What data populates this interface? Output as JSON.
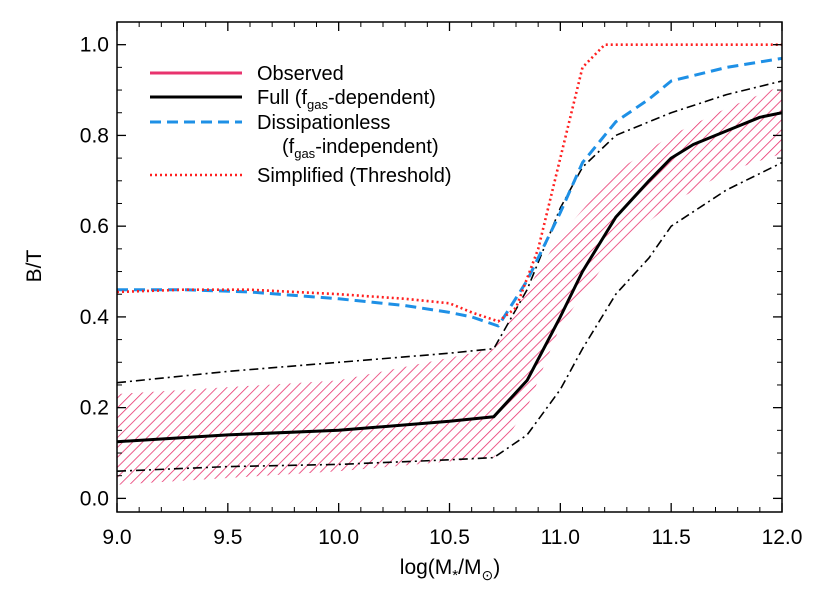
{
  "chart_data": {
    "type": "line",
    "xlabel": "log(M*/M⊙)",
    "ylabel": "B/T",
    "xlim": [
      9.0,
      12.0
    ],
    "ylim": [
      -0.03,
      1.05
    ],
    "xticks": [
      "9.0",
      "9.5",
      "10.0",
      "10.5",
      "11.0",
      "11.5",
      "12.0"
    ],
    "yticks": [
      "0.0",
      "0.2",
      "0.4",
      "0.6",
      "0.8",
      "1.0"
    ],
    "legend_position": "top-left",
    "observed_band": {
      "name": "Observed",
      "color": "#e8336e",
      "x": [
        9.0,
        10.0,
        10.7,
        10.85,
        11.0,
        11.25,
        11.5,
        11.75,
        12.0
      ],
      "lower": [
        0.03,
        0.06,
        0.09,
        0.2,
        0.38,
        0.55,
        0.65,
        0.72,
        0.76
      ],
      "upper": [
        0.23,
        0.26,
        0.33,
        0.46,
        0.58,
        0.72,
        0.8,
        0.86,
        0.91
      ]
    },
    "series": [
      {
        "name": "Full",
        "sub": "gas",
        "suffix": "-dependent)",
        "label_prefix": "Full (f",
        "style": "solid",
        "color": "#000000",
        "x": [
          9.0,
          9.5,
          10.0,
          10.5,
          10.7,
          10.85,
          11.0,
          11.1,
          11.25,
          11.4,
          11.5,
          11.6,
          11.75,
          11.9,
          12.0
        ],
        "y": [
          0.125,
          0.14,
          0.15,
          0.17,
          0.18,
          0.26,
          0.4,
          0.5,
          0.62,
          0.7,
          0.75,
          0.78,
          0.81,
          0.84,
          0.85
        ]
      },
      {
        "name": "Full upper bound",
        "style": "dashdot",
        "color": "#000000",
        "x": [
          9.0,
          9.5,
          10.0,
          10.5,
          10.7,
          10.85,
          11.0,
          11.1,
          11.25,
          11.5,
          11.75,
          12.0
        ],
        "y": [
          0.255,
          0.28,
          0.3,
          0.32,
          0.33,
          0.46,
          0.64,
          0.73,
          0.8,
          0.85,
          0.89,
          0.92
        ]
      },
      {
        "name": "Full lower bound",
        "style": "dashdot",
        "color": "#000000",
        "x": [
          9.0,
          9.5,
          10.0,
          10.5,
          10.7,
          10.85,
          11.0,
          11.1,
          11.25,
          11.4,
          11.5,
          11.75,
          12.0
        ],
        "y": [
          0.06,
          0.07,
          0.075,
          0.085,
          0.09,
          0.14,
          0.24,
          0.33,
          0.45,
          0.53,
          0.6,
          0.68,
          0.74
        ]
      },
      {
        "name": "Dissipationless",
        "label_line2_prefix": "(f",
        "sub": "gas",
        "suffix": "-independent)",
        "style": "dashed",
        "color": "#1e90e6",
        "x": [
          9.0,
          9.3,
          9.6,
          10.0,
          10.3,
          10.5,
          10.6,
          10.72,
          10.85,
          11.0,
          11.1,
          11.25,
          11.4,
          11.5,
          11.75,
          12.0
        ],
        "y": [
          0.46,
          0.46,
          0.455,
          0.44,
          0.425,
          0.41,
          0.4,
          0.38,
          0.48,
          0.63,
          0.74,
          0.83,
          0.88,
          0.92,
          0.95,
          0.97
        ]
      },
      {
        "name": "Simplified (Threshold)",
        "style": "dotted",
        "color": "#ff2020",
        "x": [
          9.0,
          9.3,
          9.6,
          10.0,
          10.3,
          10.5,
          10.6,
          10.72,
          10.8,
          10.9,
          11.0,
          11.1,
          11.2,
          11.5,
          12.0
        ],
        "y": [
          0.455,
          0.46,
          0.46,
          0.45,
          0.44,
          0.43,
          0.41,
          0.39,
          0.42,
          0.55,
          0.75,
          0.95,
          1.0,
          1.0,
          1.0
        ]
      }
    ],
    "legend": [
      {
        "label": "Observed",
        "style": "solid",
        "color": "#e8336e"
      },
      {
        "label": "Full (f",
        "sub": "gas",
        "suffix": "-dependent)",
        "style": "solid",
        "color": "#000000"
      },
      {
        "label": "Dissipationless",
        "line2": "(f",
        "sub": "gas",
        "suffix": "-independent)",
        "style": "dashed",
        "color": "#1e90e6"
      },
      {
        "label": "Simplified (Threshold)",
        "style": "dotted",
        "color": "#ff2020"
      }
    ]
  }
}
